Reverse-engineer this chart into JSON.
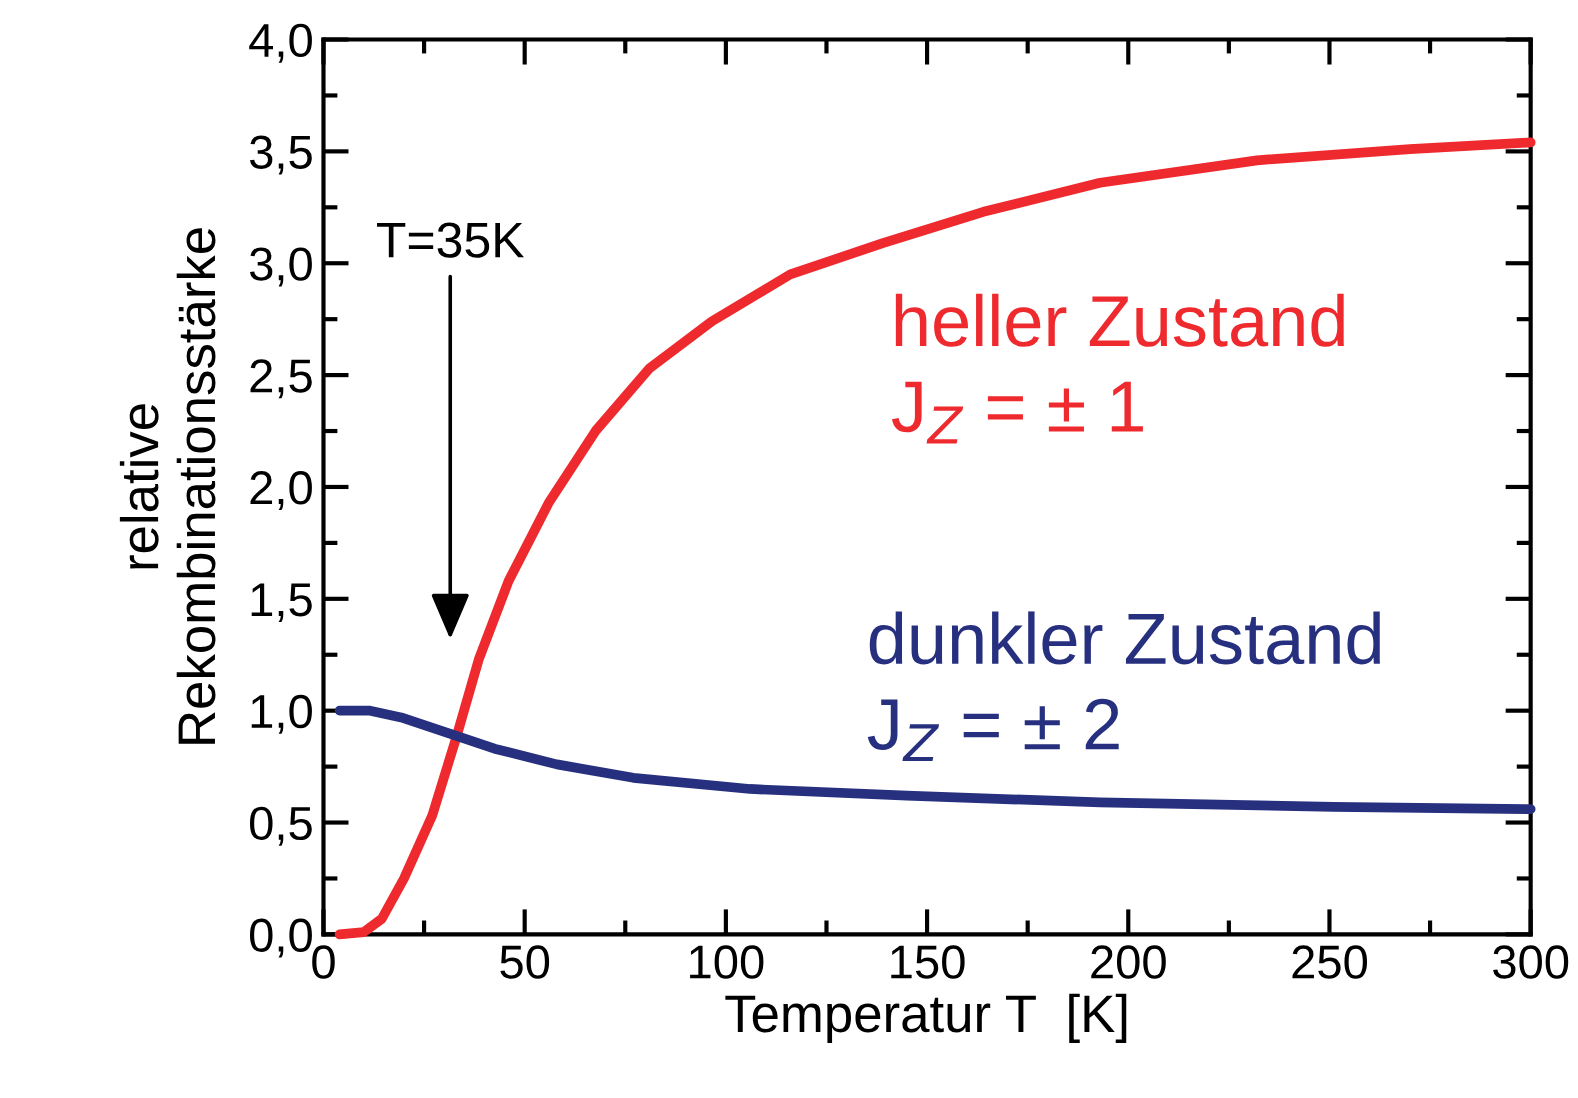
{
  "chart_data": {
    "type": "line",
    "xlabel": "Temperatur T  [K]",
    "ylabel": "relative\nRekombinationsstärke",
    "xlim": [
      0,
      300
    ],
    "ylim": [
      0,
      4
    ],
    "xticks": [
      0,
      {
        "value": 25,
        "label": null
      },
      50,
      {
        "value": 75,
        "label": null
      },
      100,
      {
        "value": 125,
        "label": null
      },
      150,
      {
        "value": 175,
        "label": null
      },
      200,
      {
        "value": 225,
        "label": null
      },
      250,
      {
        "value": 275,
        "label": null
      },
      300
    ],
    "yticks": [
      {
        "value": 0,
        "label": "0,0"
      },
      {
        "value": 0.25,
        "label": null
      },
      {
        "value": 0.5,
        "label": "0,5"
      },
      {
        "value": 0.75,
        "label": null
      },
      {
        "value": 1.0,
        "label": "1,0"
      },
      {
        "value": 1.25,
        "label": null
      },
      {
        "value": 1.5,
        "label": "1,5"
      },
      {
        "value": 1.75,
        "label": null
      },
      {
        "value": 2.0,
        "label": "2,0"
      },
      {
        "value": 2.25,
        "label": null
      },
      {
        "value": 2.5,
        "label": "2,5"
      },
      {
        "value": 2.75,
        "label": null
      },
      {
        "value": 3.0,
        "label": "3,0"
      },
      {
        "value": 3.25,
        "label": null
      },
      {
        "value": 3.5,
        "label": "3,5"
      },
      {
        "value": 3.75,
        "label": null
      },
      {
        "value": 4.0,
        "label": "4,0"
      }
    ],
    "grid": false,
    "legend": false,
    "marker": "none",
    "line_style": "solid",
    "annotations": [
      "T=35K"
    ],
    "series": [
      {
        "name": "heller Zustand\nJ$_{Z}$ = ± 1",
        "color": "#ee2a2e",
        "x": [
          4,
          10,
          14.5,
          20,
          27,
          33,
          38.6,
          46,
          56,
          67.6,
          81,
          96.5,
          116,
          139,
          164,
          193,
          232,
          270,
          300
        ],
        "values": [
          0,
          0.01,
          0.07,
          0.25,
          0.53,
          0.88,
          1.23,
          1.58,
          1.93,
          2.25,
          2.53,
          2.74,
          2.95,
          3.09,
          3.23,
          3.36,
          3.46,
          3.51,
          3.54
        ]
      },
      {
        "name": "dunkler Zustand\nJ$_{Z}$ = ± 2",
        "color": "#27307f",
        "x": [
          4,
          11.6,
          19.3,
          31,
          42.5,
          58,
          77,
          106,
          145,
          193,
          251,
          300
        ],
        "values": [
          1.0,
          1.0,
          0.97,
          0.9,
          0.83,
          0.76,
          0.7,
          0.65,
          0.62,
          0.59,
          0.57,
          0.56
        ]
      }
    ]
  }
}
